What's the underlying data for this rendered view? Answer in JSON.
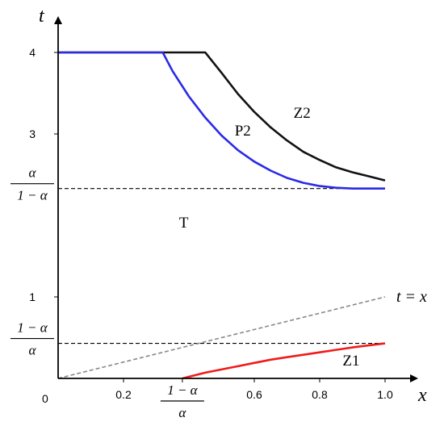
{
  "chart_data": {
    "type": "line",
    "xlabel": "x",
    "ylabel": "t",
    "xlim": [
      0,
      1.15
    ],
    "ylim": [
      0,
      4.3
    ],
    "origin_label": "0",
    "x_ticks": [
      {
        "value": 0.2,
        "label": "0.2"
      },
      {
        "value": 0.6,
        "label": "0.6"
      },
      {
        "value": 0.8,
        "label": "0.8"
      },
      {
        "value": 1.0,
        "label": "1.0"
      }
    ],
    "y_ticks": [
      {
        "value": 1,
        "label": "1"
      },
      {
        "value": 3,
        "label": "3"
      },
      {
        "value": 4,
        "label": "4"
      }
    ],
    "fraction_ticks": {
      "x": [
        {
          "value": 0.38,
          "numerator": "1 − α",
          "denominator": "α"
        }
      ],
      "y": [
        {
          "value": 2.33,
          "numerator": "α",
          "denominator": "1 − α"
        },
        {
          "value": 0.43,
          "numerator": "1 − α",
          "denominator": "α"
        }
      ]
    },
    "colors": {
      "blue": "#2a2ae6",
      "black": "#111111",
      "red": "#ee1c1c",
      "gray": "#888888",
      "axis": "#000000"
    },
    "series": [
      {
        "color": "#111111",
        "x": [
          0,
          0.45,
          0.5,
          0.55,
          0.6,
          0.65,
          0.7,
          0.75,
          0.8,
          0.85,
          0.9,
          0.95,
          1.0
        ],
        "y": [
          4,
          4,
          3.75,
          3.49,
          3.27,
          3.08,
          2.92,
          2.78,
          2.68,
          2.59,
          2.53,
          2.48,
          2.43
        ]
      },
      {
        "color": "#2a2ae6",
        "x": [
          0,
          0.32,
          0.35,
          0.4,
          0.45,
          0.5,
          0.55,
          0.6,
          0.65,
          0.7,
          0.75,
          0.8,
          0.85,
          0.9,
          0.95,
          1.0
        ],
        "y": [
          4,
          4,
          3.77,
          3.46,
          3.2,
          2.98,
          2.8,
          2.66,
          2.55,
          2.46,
          2.4,
          2.36,
          2.34,
          2.33,
          2.33,
          2.33
        ]
      },
      {
        "color": "#ee1c1c",
        "x": [
          0.38,
          0.45,
          0.5,
          0.55,
          0.6,
          0.65,
          0.7,
          0.75,
          0.8,
          0.85,
          0.9,
          0.95,
          1.0
        ],
        "y": [
          0,
          0.07,
          0.11,
          0.15,
          0.19,
          0.23,
          0.26,
          0.29,
          0.32,
          0.35,
          0.38,
          0.405,
          0.43
        ]
      }
    ],
    "reference_lines": [
      {
        "kind": "horizontal",
        "y": 2.33,
        "x_from": 0,
        "x_to": 1.0,
        "style": "dashed",
        "color": "#000000"
      },
      {
        "kind": "horizontal",
        "y": 0.43,
        "x_from": 0,
        "x_to": 1.0,
        "style": "dashed",
        "color": "#000000"
      },
      {
        "kind": "diagonal",
        "from": [
          0,
          0
        ],
        "to": [
          1.0,
          1.0
        ],
        "style": "dashed",
        "color": "#888888",
        "label": "t = x"
      }
    ],
    "annotations": [
      {
        "text": "Z2",
        "x": 0.72,
        "y": 3.2
      },
      {
        "text": "P2",
        "x": 0.54,
        "y": 2.98
      },
      {
        "text": "T",
        "x": 0.37,
        "y": 1.85
      },
      {
        "text": "Z1",
        "x": 0.87,
        "y": 0.16
      }
    ]
  }
}
